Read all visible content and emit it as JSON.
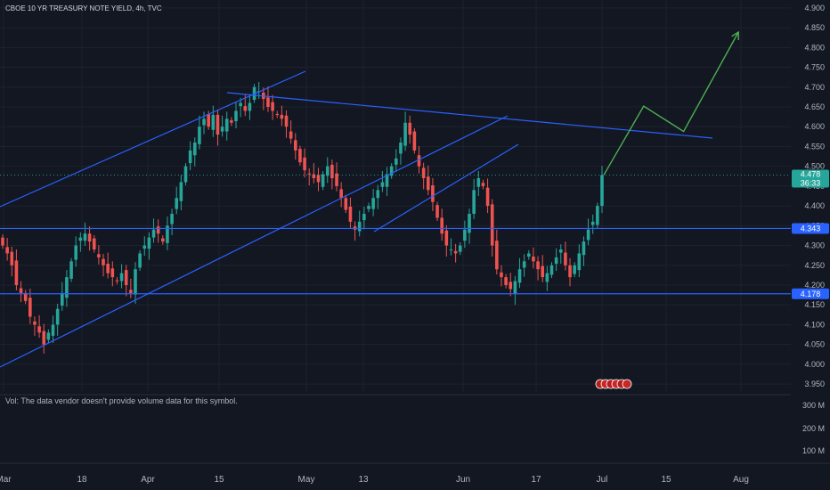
{
  "chart_title": "CBOE 10 YR TREASURY NOTE YIELD, 4h, TVC",
  "volume_note": "Vol: The data vendor doesn't provide volume data for this symbol.",
  "colors": {
    "background": "#131722",
    "grid": "#1e222d",
    "up": "#26a69a",
    "down": "#ef5350",
    "trendline": "#2962ff",
    "projection": "#4caf50",
    "axis_text": "#b2b5be"
  },
  "badges": {
    "last_price": "4.478",
    "countdown": "36:33",
    "level_upper": "4.343",
    "level_lower": "4.178"
  },
  "chart_data": {
    "type": "candlestick",
    "ylim": [
      3.93,
      4.92
    ],
    "y_ticks": [
      "4.900",
      "4.850",
      "4.800",
      "4.750",
      "4.700",
      "4.650",
      "4.600",
      "4.550",
      "4.500",
      "4.450",
      "4.400",
      "4.350",
      "4.300",
      "4.250",
      "4.200",
      "4.150",
      "4.100",
      "4.050",
      "4.000",
      "3.950"
    ],
    "volume_ticks": [
      "300 M",
      "200 M",
      "100 M"
    ],
    "x_ticks": [
      "Mar",
      "18",
      "Apr",
      "15",
      "May",
      "13",
      "Jun",
      "17",
      "Jul",
      "15",
      "Aug"
    ],
    "horizontal_levels": [
      4.343,
      4.178
    ],
    "last_price": 4.478,
    "closes": [
      4.3,
      4.28,
      4.25,
      4.2,
      4.18,
      4.16,
      4.12,
      4.1,
      4.08,
      4.05,
      4.08,
      4.1,
      4.14,
      4.18,
      4.22,
      4.26,
      4.3,
      4.32,
      4.33,
      4.31,
      4.29,
      4.27,
      4.25,
      4.23,
      4.22,
      4.21,
      4.23,
      4.2,
      4.18,
      4.24,
      4.28,
      4.3,
      4.32,
      4.34,
      4.33,
      4.31,
      4.35,
      4.38,
      4.42,
      4.46,
      4.5,
      4.54,
      4.56,
      4.6,
      4.62,
      4.6,
      4.63,
      4.58,
      4.6,
      4.62,
      4.61,
      4.64,
      4.66,
      4.64,
      4.66,
      4.7,
      4.69,
      4.67,
      4.65,
      4.64,
      4.63,
      4.62,
      4.6,
      4.57,
      4.54,
      4.51,
      4.49,
      4.48,
      4.47,
      4.46,
      4.48,
      4.5,
      4.47,
      4.45,
      4.42,
      4.39,
      4.36,
      4.34,
      4.36,
      4.38,
      4.4,
      4.42,
      4.44,
      4.46,
      4.48,
      4.5,
      4.52,
      4.56,
      4.61,
      4.58,
      4.54,
      4.5,
      4.47,
      4.44,
      4.41,
      4.37,
      4.33,
      4.3,
      4.29,
      4.28,
      4.3,
      4.34,
      4.38,
      4.44,
      4.47,
      4.45,
      4.4,
      4.3,
      4.24,
      4.22,
      4.2,
      4.19,
      4.21,
      4.24,
      4.26,
      4.28,
      4.26,
      4.24,
      4.22,
      4.23,
      4.25,
      4.27,
      4.29,
      4.25,
      4.22,
      4.25,
      4.28,
      4.31,
      4.34,
      4.36,
      4.4,
      4.478
    ],
    "projection_path": [
      [
        4.478,
        0
      ],
      [
        4.652,
        8
      ],
      [
        4.588,
        16
      ],
      [
        4.839,
        27
      ]
    ]
  }
}
